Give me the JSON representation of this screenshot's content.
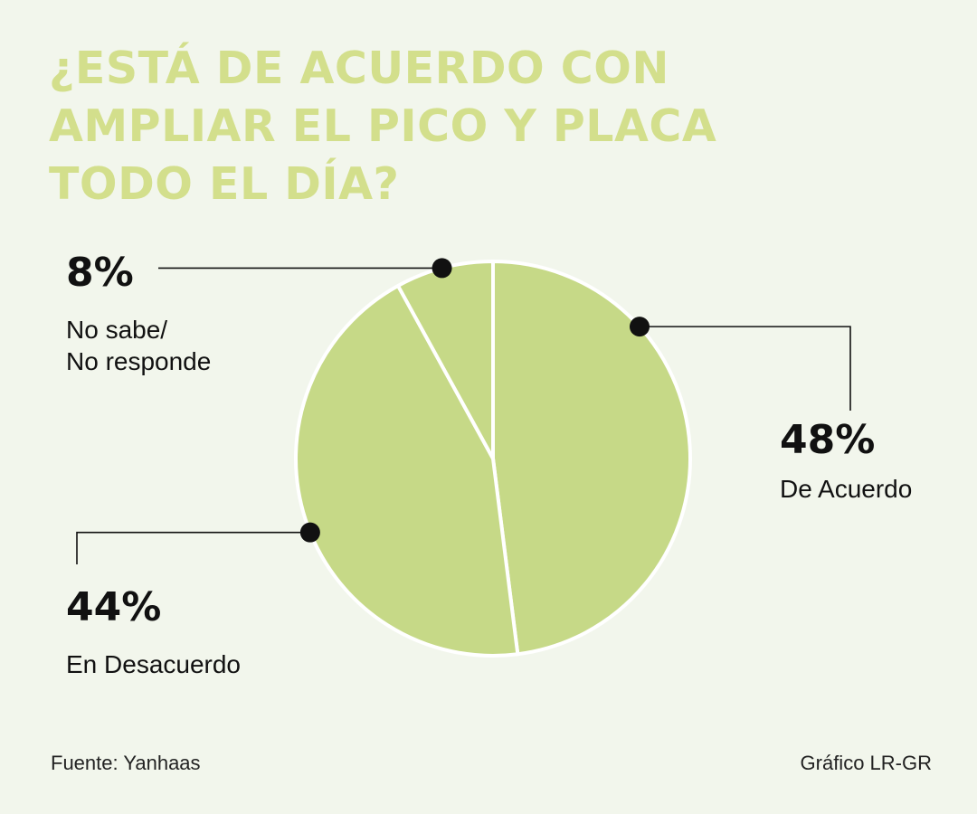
{
  "chart_data": {
    "type": "pie",
    "title": "¿ESTÁ DE ACUERDO CON AMPLIAR EL PICO Y PLACA TODO EL DÍA?",
    "categories": [
      "De Acuerdo",
      "En Desacuerdo",
      "No sabe/ No responde"
    ],
    "values": [
      48,
      44,
      8
    ],
    "value_labels": [
      "48%",
      "44%",
      "8%"
    ],
    "category_lines": [
      [
        "De Acuerdo"
      ],
      [
        "En Desacuerdo"
      ],
      [
        "No sabe/",
        "No responde"
      ]
    ],
    "legend": "none",
    "grid": false
  },
  "colors": {
    "background": "#f2f6ec",
    "slice": "#c6d987",
    "slice_border": "#ffffff",
    "title": "#d3df8c",
    "text": "#111111",
    "leader_line": "#111111"
  },
  "footer": {
    "source": "Fuente: Yanhaas",
    "credit": "Gráfico LR-GR"
  }
}
